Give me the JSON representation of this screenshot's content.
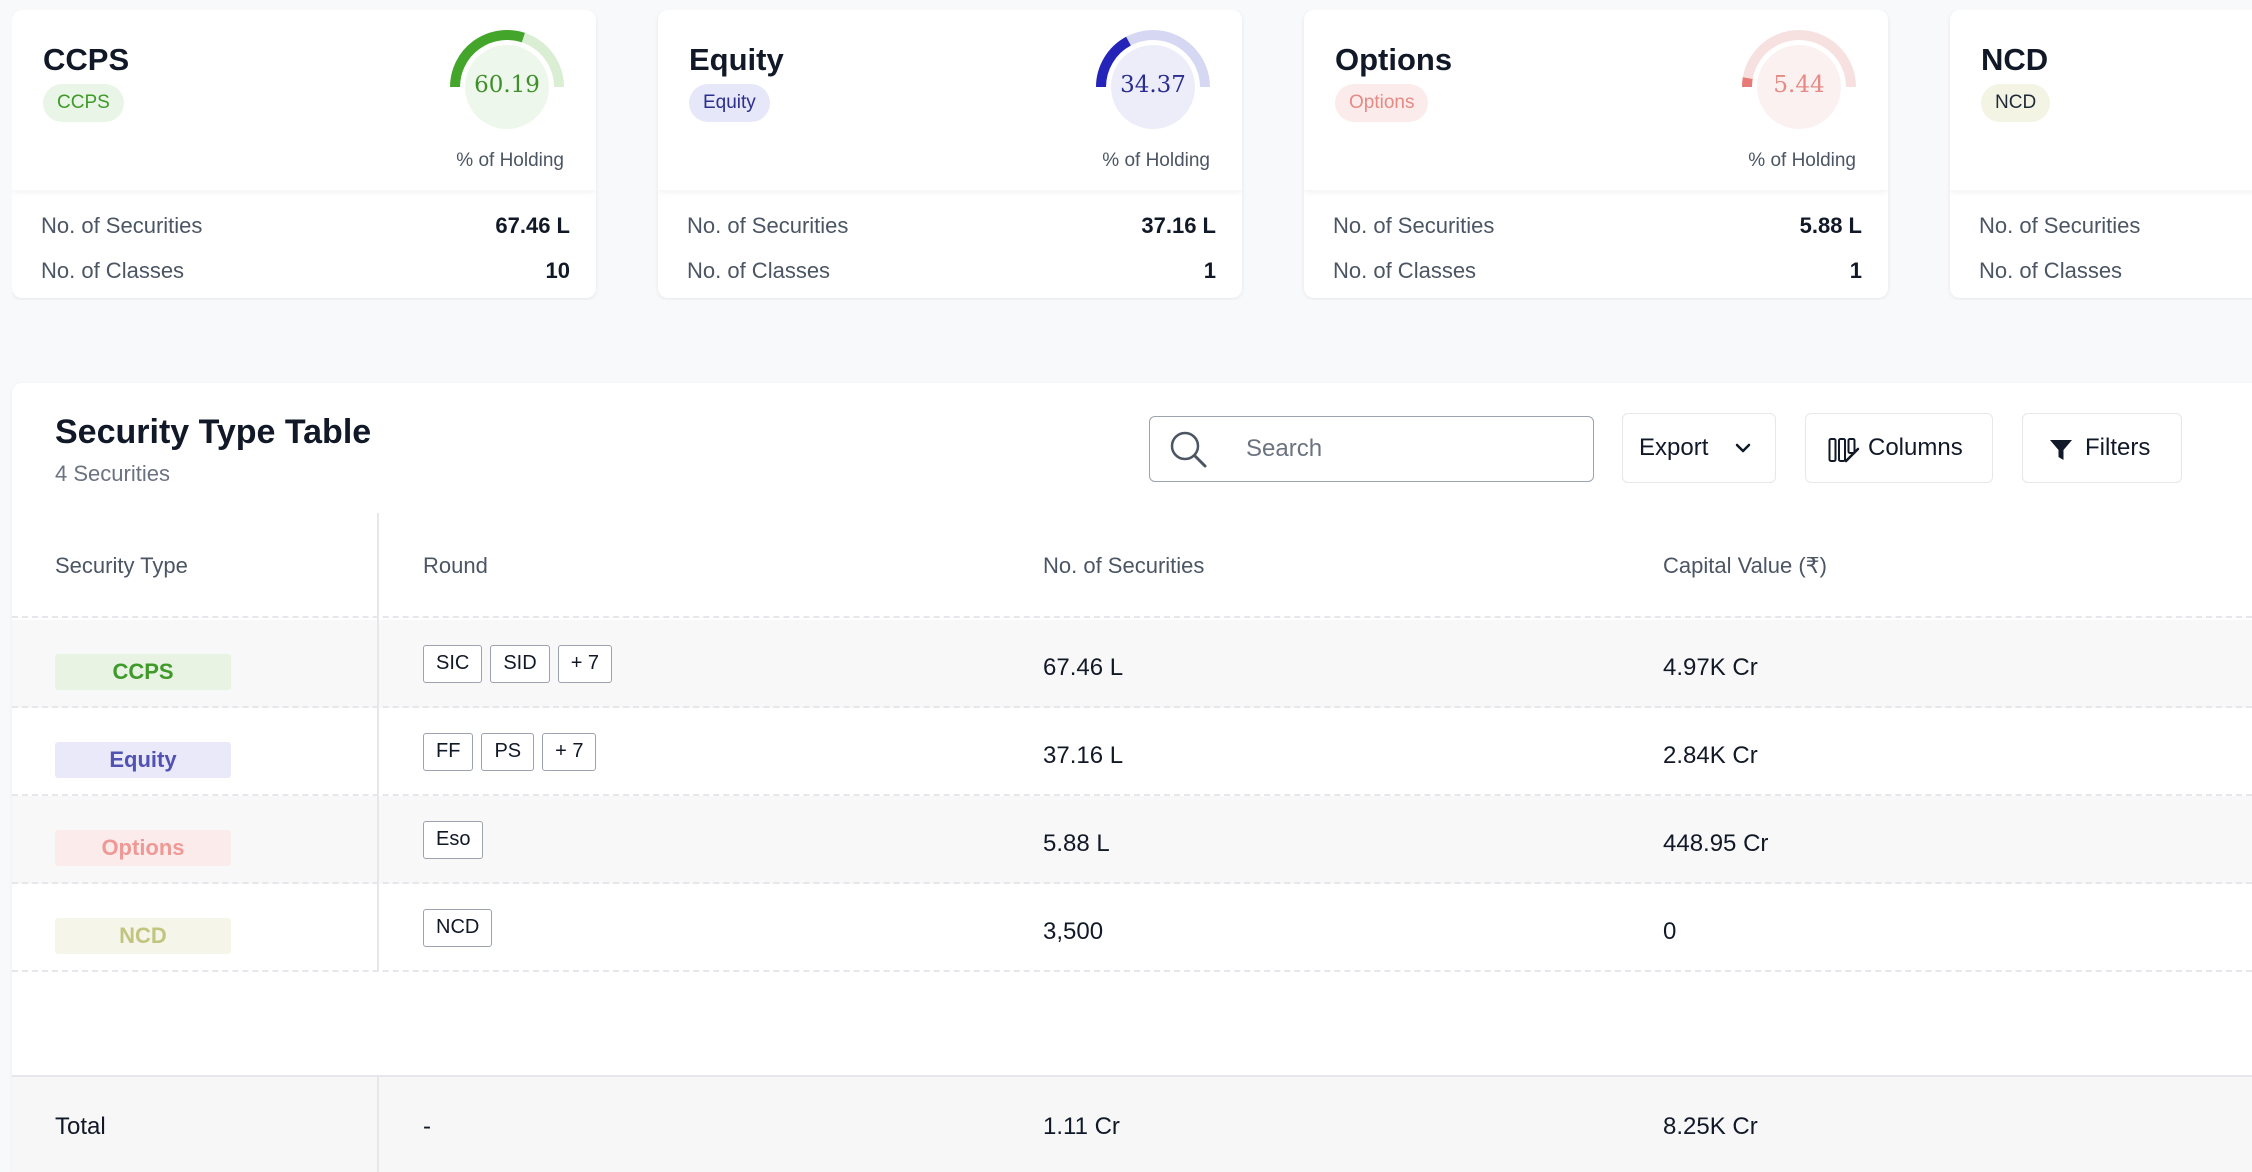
{
  "cards": [
    {
      "title": "CCPS",
      "badge": "CCPS",
      "percent": "60.19",
      "percent_value": 60.19,
      "caption": "% of Holding",
      "securities_label": "No. of Securities",
      "securities_value": "67.46 L",
      "classes_label": "No. of Classes",
      "classes_value": "10",
      "colors": {
        "badge_bg": "#e9f5e6",
        "badge_fg": "#3f9a2a",
        "arc": "#44a52b",
        "track": "#d9eed3",
        "val": "#3f8f2a"
      }
    },
    {
      "title": "Equity",
      "badge": "Equity",
      "percent": "34.37",
      "percent_value": 34.37,
      "caption": "% of Holding",
      "securities_label": "No. of Securities",
      "securities_value": "37.16 L",
      "classes_label": "No. of Classes",
      "classes_value": "1",
      "colors": {
        "badge_bg": "#e6e7f8",
        "badge_fg": "#2c2f8f",
        "arc": "#2424b8",
        "track": "#d6d7f3",
        "val": "#2b2d8e"
      }
    },
    {
      "title": "Options",
      "badge": "Options",
      "percent": "5.44",
      "percent_value": 5.44,
      "caption": "% of Holding",
      "securities_label": "No. of Securities",
      "securities_value": "5.88 L",
      "classes_label": "No. of Classes",
      "classes_value": "1",
      "colors": {
        "badge_bg": "#fbeceb",
        "badge_fg": "#e58a85",
        "arc": "#e77b77",
        "track": "#f7e1e0",
        "val": "#e58a85"
      }
    },
    {
      "title": "NCD",
      "badge": "NCD",
      "caption": "",
      "securities_label": "No. of Securities",
      "securities_value": "",
      "classes_label": "No. of Classes",
      "classes_value": "",
      "colors": {
        "badge_bg": "#f3f4e4",
        "badge_fg": "#1f2937"
      }
    }
  ],
  "table": {
    "title": "Security Type Table",
    "subtitle": "4 Securities",
    "search_placeholder": "Search",
    "export_label": "Export",
    "columns_label": "Columns",
    "filters_label": "Filters",
    "headers": {
      "type": "Security Type",
      "round": "Round",
      "securities": "No. of Securities",
      "capital": "Capital Value (₹)"
    },
    "rows": [
      {
        "type": "CCPS",
        "rounds": [
          "SIC",
          "SID",
          "+ 7"
        ],
        "securities": "67.46 L",
        "capital": "4.97K Cr",
        "pill_bg": "#e8f3e4",
        "pill_fg": "#3f9a2a"
      },
      {
        "type": "Equity",
        "rounds": [
          "FF",
          "PS",
          "+ 7"
        ],
        "securities": "37.16 L",
        "capital": "2.84K Cr",
        "pill_bg": "#e9e9f9",
        "pill_fg": "#5252b3"
      },
      {
        "type": "Options",
        "rounds": [
          "Eso"
        ],
        "securities": "5.88 L",
        "capital": "448.95 Cr",
        "pill_bg": "#fbeceb",
        "pill_fg": "#ee9995"
      },
      {
        "type": "NCD",
        "rounds": [
          "NCD"
        ],
        "securities": "3,500",
        "capital": "0",
        "pill_bg": "#f5f6e9",
        "pill_fg": "#c2c580"
      }
    ],
    "total": {
      "label": "Total",
      "round": "-",
      "securities": "1.11 Cr",
      "capital": "8.25K Cr"
    }
  }
}
